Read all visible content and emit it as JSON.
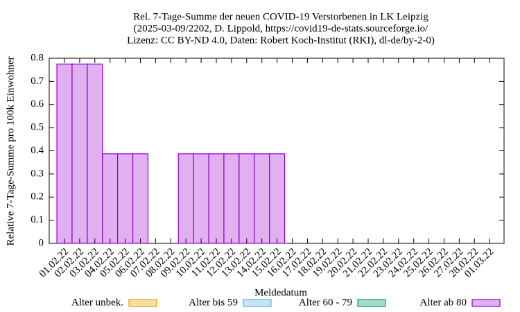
{
  "chart_data": {
    "type": "bar",
    "title": [
      "Rel. 7-Tage-Summe der neuen COVID-19 Verstorbenen in LK Leipzig",
      "(2025-03-09/2202, D. Lippold, https://covid19-de-stats.sourceforge.io/",
      "Lizenz: CC BY-ND 4.0, Daten: Robert Koch-Institut (RKI), dl-de/by-2-0)"
    ],
    "x_label": "Meldedatum",
    "y_label": "Relative 7-Tage-Summe pro 100k Einwohner",
    "stacked": true,
    "categories": [
      "01.02.22",
      "02.02.22",
      "03.02.22",
      "04.02.22",
      "05.02.22",
      "06.02.22",
      "07.02.22",
      "08.02.22",
      "09.02.22",
      "10.02.22",
      "11.02.22",
      "12.02.22",
      "13.02.22",
      "14.02.22",
      "15.02.22",
      "16.02.22",
      "17.02.22",
      "18.02.22",
      "19.02.22",
      "20.02.22",
      "21.02.22",
      "22.02.22",
      "23.02.22",
      "24.02.22",
      "25.02.22",
      "26.02.22",
      "27.02.22",
      "28.02.22",
      "01.03.22"
    ],
    "series": [
      {
        "name": "Alter unbek.",
        "color": "#e69f00",
        "fill": "#f9dfa0",
        "values": [
          0,
          0,
          0,
          0,
          0,
          0,
          0,
          0,
          0,
          0,
          0,
          0,
          0,
          0,
          0,
          0,
          0,
          0,
          0,
          0,
          0,
          0,
          0,
          0,
          0,
          0,
          0,
          0,
          0
        ]
      },
      {
        "name": "Alter bis 59",
        "color": "#56b4e9",
        "fill": "#c6e4f7",
        "values": [
          0,
          0,
          0,
          0,
          0,
          0,
          0,
          0,
          0,
          0,
          0,
          0,
          0,
          0,
          0,
          0,
          0,
          0,
          0,
          0,
          0,
          0,
          0,
          0,
          0,
          0,
          0,
          0,
          0
        ]
      },
      {
        "name": "Alter 60 - 79",
        "color": "#009e73",
        "fill": "#a5dcc6",
        "values": [
          0,
          0,
          0,
          0,
          0,
          0,
          0,
          0,
          0,
          0,
          0,
          0,
          0,
          0,
          0,
          0,
          0,
          0,
          0,
          0,
          0,
          0,
          0,
          0,
          0,
          0,
          0,
          0,
          0
        ]
      },
      {
        "name": "Alter ab 80",
        "color": "#9400d3",
        "fill": "#e0b0f0",
        "values": [
          0.775,
          0.775,
          0.775,
          0.387,
          0.387,
          0.387,
          0,
          0,
          0.387,
          0.387,
          0.387,
          0.387,
          0.387,
          0.387,
          0.387,
          0,
          0,
          0,
          0,
          0,
          0,
          0,
          0,
          0,
          0,
          0,
          0,
          0,
          0
        ]
      }
    ],
    "ylim": [
      0,
      0.8
    ],
    "yticks": [
      0,
      0.1,
      0.2,
      0.3,
      0.4,
      0.5,
      0.6,
      0.7,
      0.8
    ],
    "legend": "bottom"
  }
}
